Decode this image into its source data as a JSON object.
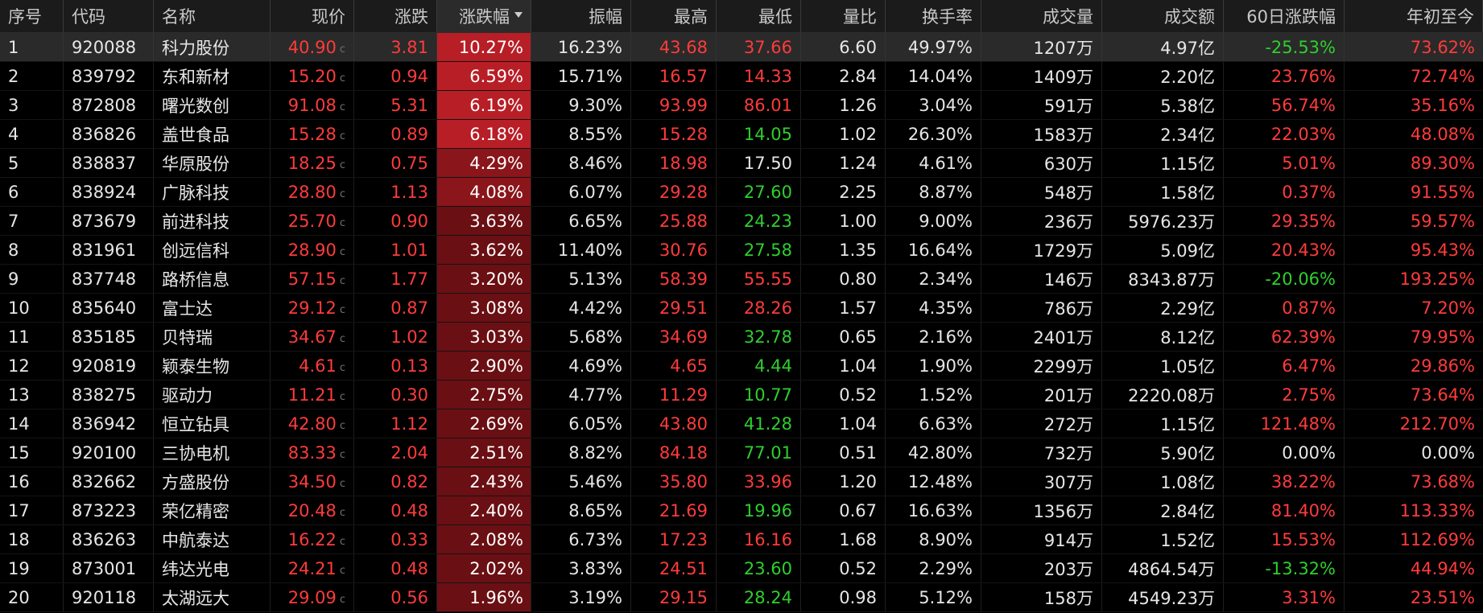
{
  "colors": {
    "up": "#ff3b3b",
    "down": "#2ecf2e",
    "neutral": "#e6e6e6",
    "pct_strong": "#b81e26",
    "pct_weak": "#6a0f13"
  },
  "columns": [
    {
      "key": "seq",
      "label": "序号"
    },
    {
      "key": "code",
      "label": "代码"
    },
    {
      "key": "name",
      "label": "名称"
    },
    {
      "key": "price",
      "label": "现价"
    },
    {
      "key": "chg",
      "label": "涨跌"
    },
    {
      "key": "pct",
      "label": "涨跌幅",
      "sorted": "desc"
    },
    {
      "key": "amp",
      "label": "振幅"
    },
    {
      "key": "hi",
      "label": "最高"
    },
    {
      "key": "lo",
      "label": "最低"
    },
    {
      "key": "vr",
      "label": "量比"
    },
    {
      "key": "tr",
      "label": "换手率"
    },
    {
      "key": "vol",
      "label": "成交量"
    },
    {
      "key": "amt",
      "label": "成交额"
    },
    {
      "key": "d60",
      "label": "60日涨跌幅"
    },
    {
      "key": "ytd",
      "label": "年初至今"
    }
  ],
  "price_marker": "c",
  "rows": [
    {
      "seq": "1",
      "code": "920088",
      "name": "科力股份",
      "price": "40.90",
      "chg": "3.81",
      "pct": "10.27%",
      "amp": "16.23%",
      "hi": "43.68",
      "lo": "37.66",
      "vr": "6.60",
      "tr": "49.97%",
      "vol": "1207万",
      "amt": "4.97亿",
      "d60": "-25.53%",
      "ytd": "73.62%",
      "hi_c": "up",
      "lo_c": "up",
      "d60_c": "down",
      "ytd_c": "up",
      "selected": true
    },
    {
      "seq": "2",
      "code": "839792",
      "name": "东和新材",
      "price": "15.20",
      "chg": "0.94",
      "pct": "6.59%",
      "amp": "15.71%",
      "hi": "16.57",
      "lo": "14.33",
      "vr": "2.84",
      "tr": "14.04%",
      "vol": "1409万",
      "amt": "2.20亿",
      "d60": "23.76%",
      "ytd": "72.74%",
      "hi_c": "up",
      "lo_c": "up",
      "d60_c": "up",
      "ytd_c": "up"
    },
    {
      "seq": "3",
      "code": "872808",
      "name": "曙光数创",
      "price": "91.08",
      "chg": "5.31",
      "pct": "6.19%",
      "amp": "9.30%",
      "hi": "93.99",
      "lo": "86.01",
      "vr": "1.26",
      "tr": "3.04%",
      "vol": "591万",
      "amt": "5.38亿",
      "d60": "56.74%",
      "ytd": "35.16%",
      "hi_c": "up",
      "lo_c": "up",
      "d60_c": "up",
      "ytd_c": "up"
    },
    {
      "seq": "4",
      "code": "836826",
      "name": "盖世食品",
      "price": "15.28",
      "chg": "0.89",
      "pct": "6.18%",
      "amp": "8.55%",
      "hi": "15.28",
      "lo": "14.05",
      "vr": "1.02",
      "tr": "26.30%",
      "vol": "1583万",
      "amt": "2.34亿",
      "d60": "22.03%",
      "ytd": "48.08%",
      "hi_c": "up",
      "lo_c": "down",
      "d60_c": "up",
      "ytd_c": "up"
    },
    {
      "seq": "5",
      "code": "838837",
      "name": "华原股份",
      "price": "18.25",
      "chg": "0.75",
      "pct": "4.29%",
      "amp": "8.46%",
      "hi": "18.98",
      "lo": "17.50",
      "vr": "1.24",
      "tr": "4.61%",
      "vol": "630万",
      "amt": "1.15亿",
      "d60": "5.01%",
      "ytd": "89.30%",
      "hi_c": "up",
      "lo_c": "neutral",
      "d60_c": "up",
      "ytd_c": "up"
    },
    {
      "seq": "6",
      "code": "838924",
      "name": "广脉科技",
      "price": "28.80",
      "chg": "1.13",
      "pct": "4.08%",
      "amp": "6.07%",
      "hi": "29.28",
      "lo": "27.60",
      "vr": "2.25",
      "tr": "8.87%",
      "vol": "548万",
      "amt": "1.58亿",
      "d60": "0.37%",
      "ytd": "91.55%",
      "hi_c": "up",
      "lo_c": "down",
      "d60_c": "up",
      "ytd_c": "up"
    },
    {
      "seq": "7",
      "code": "873679",
      "name": "前进科技",
      "price": "25.70",
      "chg": "0.90",
      "pct": "3.63%",
      "amp": "6.65%",
      "hi": "25.88",
      "lo": "24.23",
      "vr": "1.00",
      "tr": "9.00%",
      "vol": "236万",
      "amt": "5976.23万",
      "d60": "29.35%",
      "ytd": "59.57%",
      "hi_c": "up",
      "lo_c": "down",
      "d60_c": "up",
      "ytd_c": "up"
    },
    {
      "seq": "8",
      "code": "831961",
      "name": "创远信科",
      "price": "28.90",
      "chg": "1.01",
      "pct": "3.62%",
      "amp": "11.40%",
      "hi": "30.76",
      "lo": "27.58",
      "vr": "1.35",
      "tr": "16.64%",
      "vol": "1729万",
      "amt": "5.09亿",
      "d60": "20.43%",
      "ytd": "95.43%",
      "hi_c": "up",
      "lo_c": "down",
      "d60_c": "up",
      "ytd_c": "up"
    },
    {
      "seq": "9",
      "code": "837748",
      "name": "路桥信息",
      "price": "57.15",
      "chg": "1.77",
      "pct": "3.20%",
      "amp": "5.13%",
      "hi": "58.39",
      "lo": "55.55",
      "vr": "0.80",
      "tr": "2.34%",
      "vol": "146万",
      "amt": "8343.87万",
      "d60": "-20.06%",
      "ytd": "193.25%",
      "hi_c": "up",
      "lo_c": "up",
      "d60_c": "down",
      "ytd_c": "up"
    },
    {
      "seq": "10",
      "code": "835640",
      "name": "富士达",
      "price": "29.12",
      "chg": "0.87",
      "pct": "3.08%",
      "amp": "4.42%",
      "hi": "29.51",
      "lo": "28.26",
      "vr": "1.57",
      "tr": "4.35%",
      "vol": "786万",
      "amt": "2.29亿",
      "d60": "0.87%",
      "ytd": "7.20%",
      "hi_c": "up",
      "lo_c": "up",
      "d60_c": "up",
      "ytd_c": "up"
    },
    {
      "seq": "11",
      "code": "835185",
      "name": "贝特瑞",
      "price": "34.67",
      "chg": "1.02",
      "pct": "3.03%",
      "amp": "5.68%",
      "hi": "34.69",
      "lo": "32.78",
      "vr": "0.65",
      "tr": "2.16%",
      "vol": "2401万",
      "amt": "8.12亿",
      "d60": "62.39%",
      "ytd": "79.95%",
      "hi_c": "up",
      "lo_c": "down",
      "d60_c": "up",
      "ytd_c": "up"
    },
    {
      "seq": "12",
      "code": "920819",
      "name": "颖泰生物",
      "price": "4.61",
      "chg": "0.13",
      "pct": "2.90%",
      "amp": "4.69%",
      "hi": "4.65",
      "lo": "4.44",
      "vr": "1.04",
      "tr": "1.90%",
      "vol": "2299万",
      "amt": "1.05亿",
      "d60": "6.47%",
      "ytd": "29.86%",
      "hi_c": "up",
      "lo_c": "down",
      "d60_c": "up",
      "ytd_c": "up"
    },
    {
      "seq": "13",
      "code": "838275",
      "name": "驱动力",
      "price": "11.21",
      "chg": "0.30",
      "pct": "2.75%",
      "amp": "4.77%",
      "hi": "11.29",
      "lo": "10.77",
      "vr": "0.52",
      "tr": "1.52%",
      "vol": "201万",
      "amt": "2220.08万",
      "d60": "2.75%",
      "ytd": "73.64%",
      "hi_c": "up",
      "lo_c": "down",
      "d60_c": "up",
      "ytd_c": "up"
    },
    {
      "seq": "14",
      "code": "836942",
      "name": "恒立钻具",
      "price": "42.80",
      "chg": "1.12",
      "pct": "2.69%",
      "amp": "6.05%",
      "hi": "43.80",
      "lo": "41.28",
      "vr": "1.04",
      "tr": "6.63%",
      "vol": "272万",
      "amt": "1.15亿",
      "d60": "121.48%",
      "ytd": "212.70%",
      "hi_c": "up",
      "lo_c": "down",
      "d60_c": "up",
      "ytd_c": "up"
    },
    {
      "seq": "15",
      "code": "920100",
      "name": "三协电机",
      "price": "83.33",
      "chg": "2.04",
      "pct": "2.51%",
      "amp": "8.82%",
      "hi": "84.18",
      "lo": "77.01",
      "vr": "0.51",
      "tr": "42.80%",
      "vol": "732万",
      "amt": "5.90亿",
      "d60": "0.00%",
      "ytd": "0.00%",
      "hi_c": "up",
      "lo_c": "down",
      "d60_c": "neutral",
      "ytd_c": "neutral"
    },
    {
      "seq": "16",
      "code": "832662",
      "name": "方盛股份",
      "price": "34.50",
      "chg": "0.82",
      "pct": "2.43%",
      "amp": "5.46%",
      "hi": "35.80",
      "lo": "33.96",
      "vr": "1.20",
      "tr": "12.48%",
      "vol": "307万",
      "amt": "1.08亿",
      "d60": "38.22%",
      "ytd": "73.68%",
      "hi_c": "up",
      "lo_c": "up",
      "d60_c": "up",
      "ytd_c": "up"
    },
    {
      "seq": "17",
      "code": "873223",
      "name": "荣亿精密",
      "price": "20.48",
      "chg": "0.48",
      "pct": "2.40%",
      "amp": "8.65%",
      "hi": "21.69",
      "lo": "19.96",
      "vr": "0.67",
      "tr": "16.63%",
      "vol": "1356万",
      "amt": "2.84亿",
      "d60": "81.40%",
      "ytd": "113.33%",
      "hi_c": "up",
      "lo_c": "down",
      "d60_c": "up",
      "ytd_c": "up"
    },
    {
      "seq": "18",
      "code": "836263",
      "name": "中航泰达",
      "price": "16.22",
      "chg": "0.33",
      "pct": "2.08%",
      "amp": "6.73%",
      "hi": "17.23",
      "lo": "16.16",
      "vr": "1.68",
      "tr": "8.90%",
      "vol": "914万",
      "amt": "1.52亿",
      "d60": "15.53%",
      "ytd": "112.69%",
      "hi_c": "up",
      "lo_c": "up",
      "d60_c": "up",
      "ytd_c": "up"
    },
    {
      "seq": "19",
      "code": "873001",
      "name": "纬达光电",
      "price": "24.21",
      "chg": "0.48",
      "pct": "2.02%",
      "amp": "3.83%",
      "hi": "24.51",
      "lo": "23.60",
      "vr": "0.52",
      "tr": "2.29%",
      "vol": "203万",
      "amt": "4864.54万",
      "d60": "-13.32%",
      "ytd": "44.94%",
      "hi_c": "up",
      "lo_c": "down",
      "d60_c": "down",
      "ytd_c": "up"
    },
    {
      "seq": "20",
      "code": "920118",
      "name": "太湖远大",
      "price": "29.09",
      "chg": "0.56",
      "pct": "1.96%",
      "amp": "3.19%",
      "hi": "29.15",
      "lo": "28.24",
      "vr": "0.98",
      "tr": "5.12%",
      "vol": "158万",
      "amt": "4549.23万",
      "d60": "3.31%",
      "ytd": "23.51%",
      "hi_c": "up",
      "lo_c": "down",
      "d60_c": "up",
      "ytd_c": "up"
    }
  ]
}
